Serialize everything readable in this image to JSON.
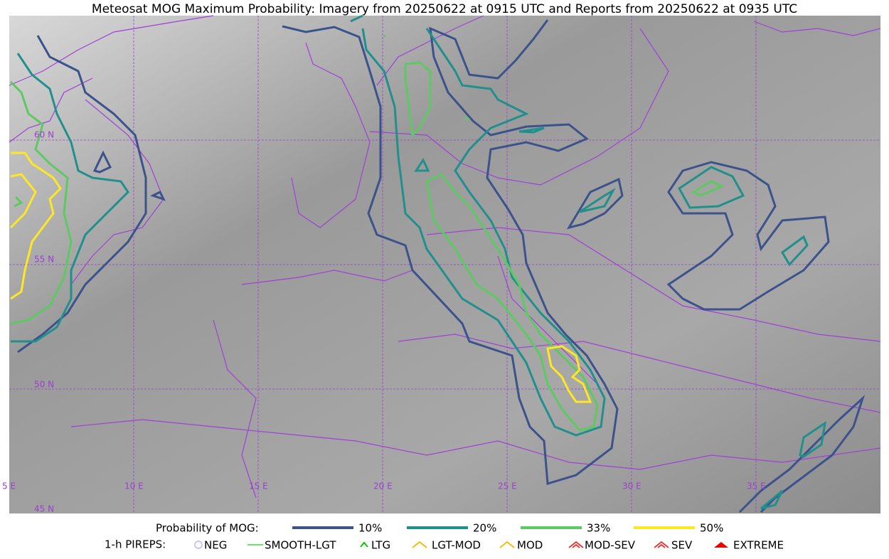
{
  "title": "Meteosat MOG Maximum Probability: Imagery from 20250622 at 0915 UTC and Reports from 20250622 at 0935 UTC",
  "latitude_labels": [
    "60 N",
    "55 N",
    "50 N",
    "45 N"
  ],
  "longitude_labels": [
    "5 E",
    "10 E",
    "15 E",
    "20 E",
    "25 E",
    "30 E",
    "35 E"
  ],
  "probability_legend": {
    "title": "Probability of MOG:",
    "items": [
      {
        "label": "10%",
        "color": "#3b528b"
      },
      {
        "label": "20%",
        "color": "#21908d"
      },
      {
        "label": "33%",
        "color": "#5dc963"
      },
      {
        "label": "50%",
        "color": "#fde725"
      }
    ]
  },
  "pireps_legend": {
    "title": "1-h PIREPS:",
    "items": [
      {
        "label": "NEG",
        "color": "#c8c8f0"
      },
      {
        "label": "SMOOTH-LGT",
        "color": "#33dd33"
      },
      {
        "label": "LTG",
        "color": "#00cc00"
      },
      {
        "label": "LGT-MOD",
        "color": "#f5b800"
      },
      {
        "label": "MOD",
        "color": "#f5b800"
      },
      {
        "label": "MOD-SEV",
        "color": "#ee3333"
      },
      {
        "label": "SEV",
        "color": "#ee3333"
      },
      {
        "label": "EXTREME",
        "color": "#ee0000"
      }
    ]
  }
}
